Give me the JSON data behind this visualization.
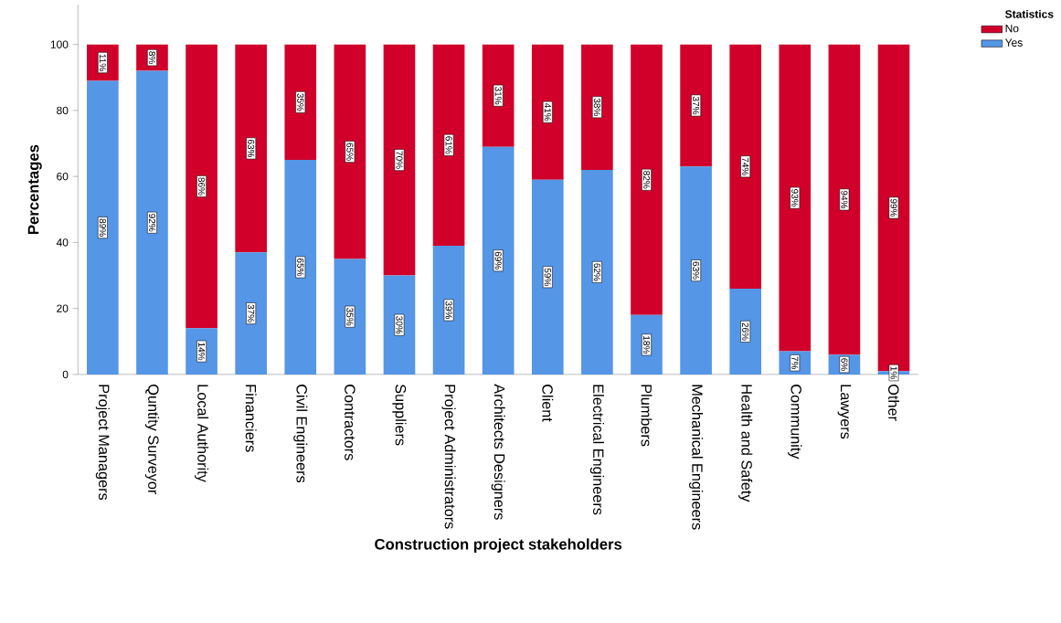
{
  "chart_data": {
    "type": "bar",
    "stacked": true,
    "xlabel": "Construction project stakeholders",
    "ylabel": "Percentages",
    "legend_title": "Statistics",
    "legend": "top right",
    "categories": [
      "Project Managers",
      "Quntity Surveyor",
      "Local Authority",
      "Financiers",
      "Civil Engineers",
      "Contractors",
      "Suppliers",
      "Project Administrators",
      "Architects Designers",
      "Client",
      "Electrical Engineers",
      "Plumbers",
      "Mechanical Engineers",
      "Health and Safety",
      "Community",
      "Lawyers",
      "Other"
    ],
    "series": [
      {
        "name": "Yes",
        "color": "#5596e6",
        "values": [
          89,
          92,
          14,
          37,
          65,
          35,
          30,
          39,
          69,
          59,
          62,
          18,
          63,
          26,
          7,
          6,
          1
        ],
        "value_labels": [
          "89%",
          "92%",
          "14%",
          "37%",
          "65%",
          "35%",
          "30%",
          "39%",
          "69%",
          "59%",
          "62%",
          "18%",
          "63%",
          "26%",
          "7%",
          "6%",
          "1%"
        ]
      },
      {
        "name": "No",
        "color": "#d1002a",
        "values": [
          11,
          8,
          86,
          63,
          35,
          65,
          70,
          61,
          31,
          41,
          38,
          82,
          37,
          74,
          93,
          94,
          99
        ],
        "value_labels": [
          "11%",
          "8%",
          "86%",
          "63%",
          "35%",
          "65%",
          "70%",
          "61%",
          "31%",
          "41%",
          "38%",
          "82%",
          "37%",
          "74%",
          "93%",
          "94%",
          "99%"
        ]
      }
    ],
    "ylim": [
      0,
      112
    ],
    "yticks": [
      0,
      20,
      40,
      60,
      80,
      100
    ]
  }
}
